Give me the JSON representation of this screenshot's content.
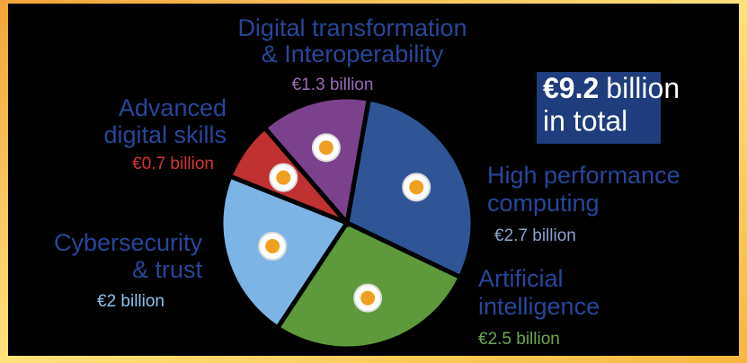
{
  "chart_data": {
    "type": "pie",
    "categories": [
      [
        "High performance",
        "computing"
      ],
      [
        "Artificial",
        "intelligence"
      ],
      [
        "Cybersecurity",
        "& trust"
      ],
      [
        "Advanced",
        "digital skills"
      ],
      [
        "Digital transformation",
        "& Interoperability"
      ]
    ],
    "values": [
      2.7,
      2.5,
      2,
      0.7,
      1.3
    ],
    "value_labels": [
      "€2.7 billion",
      "€2.5 billion",
      "€2 billion",
      "€0.7 billion",
      "€1.3 billion"
    ],
    "colors": [
      "#2f5596",
      "#5e9a3c",
      "#7db4e6",
      "#c03131",
      "#7b418c"
    ],
    "label_colors": [
      "#8aa3cf",
      "#6aa84f",
      "#8ec0ea",
      "#d83434",
      "#9a6ab8"
    ],
    "annotation": {
      "amount": "€9.2",
      "unit": "billion",
      "line2": "in total"
    }
  }
}
